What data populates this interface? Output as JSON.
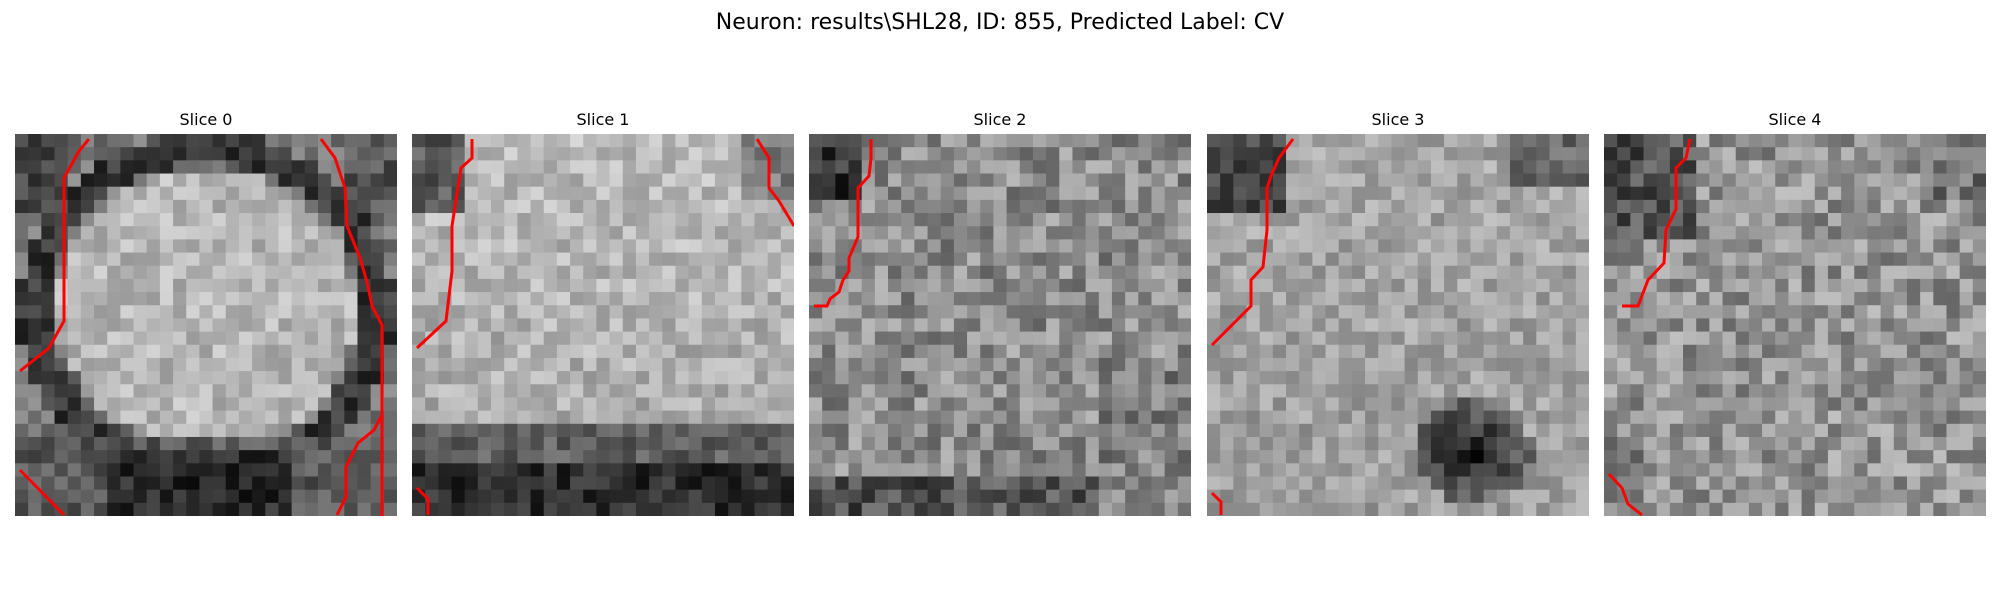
{
  "figure": {
    "title": "Neuron: results\\SHL28, ID: 855, Predicted Label: CV"
  },
  "palette": {
    "contour": "#ff0000",
    "dark": "#111111",
    "light": "#e8e8e8"
  },
  "slices": [
    {
      "title": "Slice 0",
      "pattern": "bright-soma-dark-ring"
    },
    {
      "title": "Slice 1",
      "pattern": "bright-soma-dark-bottom"
    },
    {
      "title": "Slice 2",
      "pattern": "noisy-mid-gray"
    },
    {
      "title": "Slice 3",
      "pattern": "gray-with-dark-blob-lower-right"
    },
    {
      "title": "Slice 4",
      "pattern": "noisy-gray-dark-upper-left"
    }
  ]
}
